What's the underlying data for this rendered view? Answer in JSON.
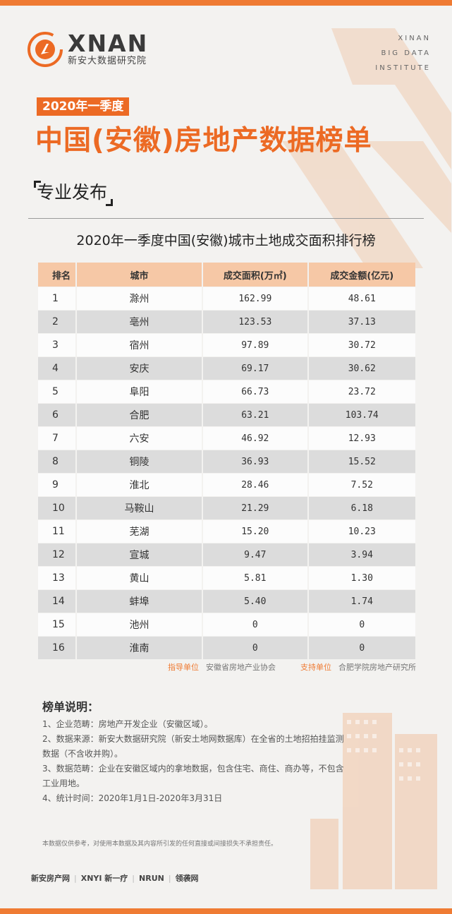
{
  "header": {
    "logo_en": "XNAN",
    "logo_cn": "新安大数据研究院",
    "institute_lines": [
      "XINAN",
      "BIG DATA",
      "INSTITUTE"
    ],
    "badge": "2020年一季度",
    "title": "中国(安徽)房地产数据榜单",
    "subtitle": "专业发布"
  },
  "table": {
    "title": "2020年一季度中国(安徽)城市土地成交面积排行榜",
    "columns": [
      "排名",
      "城市",
      "成交面积(万㎡)",
      "成交金额(亿元)"
    ],
    "rows": [
      [
        "1",
        "滁州",
        "162.99",
        "48.61"
      ],
      [
        "2",
        "亳州",
        "123.53",
        "37.13"
      ],
      [
        "3",
        "宿州",
        "97.89",
        "30.72"
      ],
      [
        "4",
        "安庆",
        "69.17",
        "30.62"
      ],
      [
        "5",
        "阜阳",
        "66.73",
        "23.72"
      ],
      [
        "6",
        "合肥",
        "63.21",
        "103.74"
      ],
      [
        "7",
        "六安",
        "46.92",
        "12.93"
      ],
      [
        "8",
        "铜陵",
        "36.93",
        "15.52"
      ],
      [
        "9",
        "淮北",
        "28.46",
        "7.52"
      ],
      [
        "10",
        "马鞍山",
        "21.29",
        "6.18"
      ],
      [
        "11",
        "芜湖",
        "15.20",
        "10.23"
      ],
      [
        "12",
        "宣城",
        "9.47",
        "3.94"
      ],
      [
        "13",
        "黄山",
        "5.81",
        "1.30"
      ],
      [
        "14",
        "蚌埠",
        "5.40",
        "1.74"
      ],
      [
        "15",
        "池州",
        "0",
        "0"
      ],
      [
        "16",
        "淮南",
        "0",
        "0"
      ]
    ]
  },
  "units": {
    "guide_label": "指导单位",
    "guide_value": "安徽省房地产业协会",
    "support_label": "支持单位",
    "support_value": "合肥学院房地产研究所"
  },
  "notes": {
    "heading": "榜单说明：",
    "items": [
      "1、企业范畴：房地产开发企业（安徽区域）。",
      "2、数据来源：新安大数据研究院（新安土地网数据库）在全省的土地招拍挂监测数据（不含收并购）。",
      "3、数据范畴：企业在安徽区域内的拿地数据，包含住宅、商住、商办等，不包含工业用地。",
      "4、统计时间：2020年1月1日-2020年3月31日"
    ],
    "disclaimer": "本数据仅供参考，对使用本数据及其内容所引发的任何直接或间接损失不承担责任。"
  },
  "partners": [
    "新安房产网",
    "XNYI 新一疗",
    "NRUN",
    "领袭网"
  ],
  "colors": {
    "accent": "#ec6a24",
    "header_row": "#f6c8a6"
  }
}
